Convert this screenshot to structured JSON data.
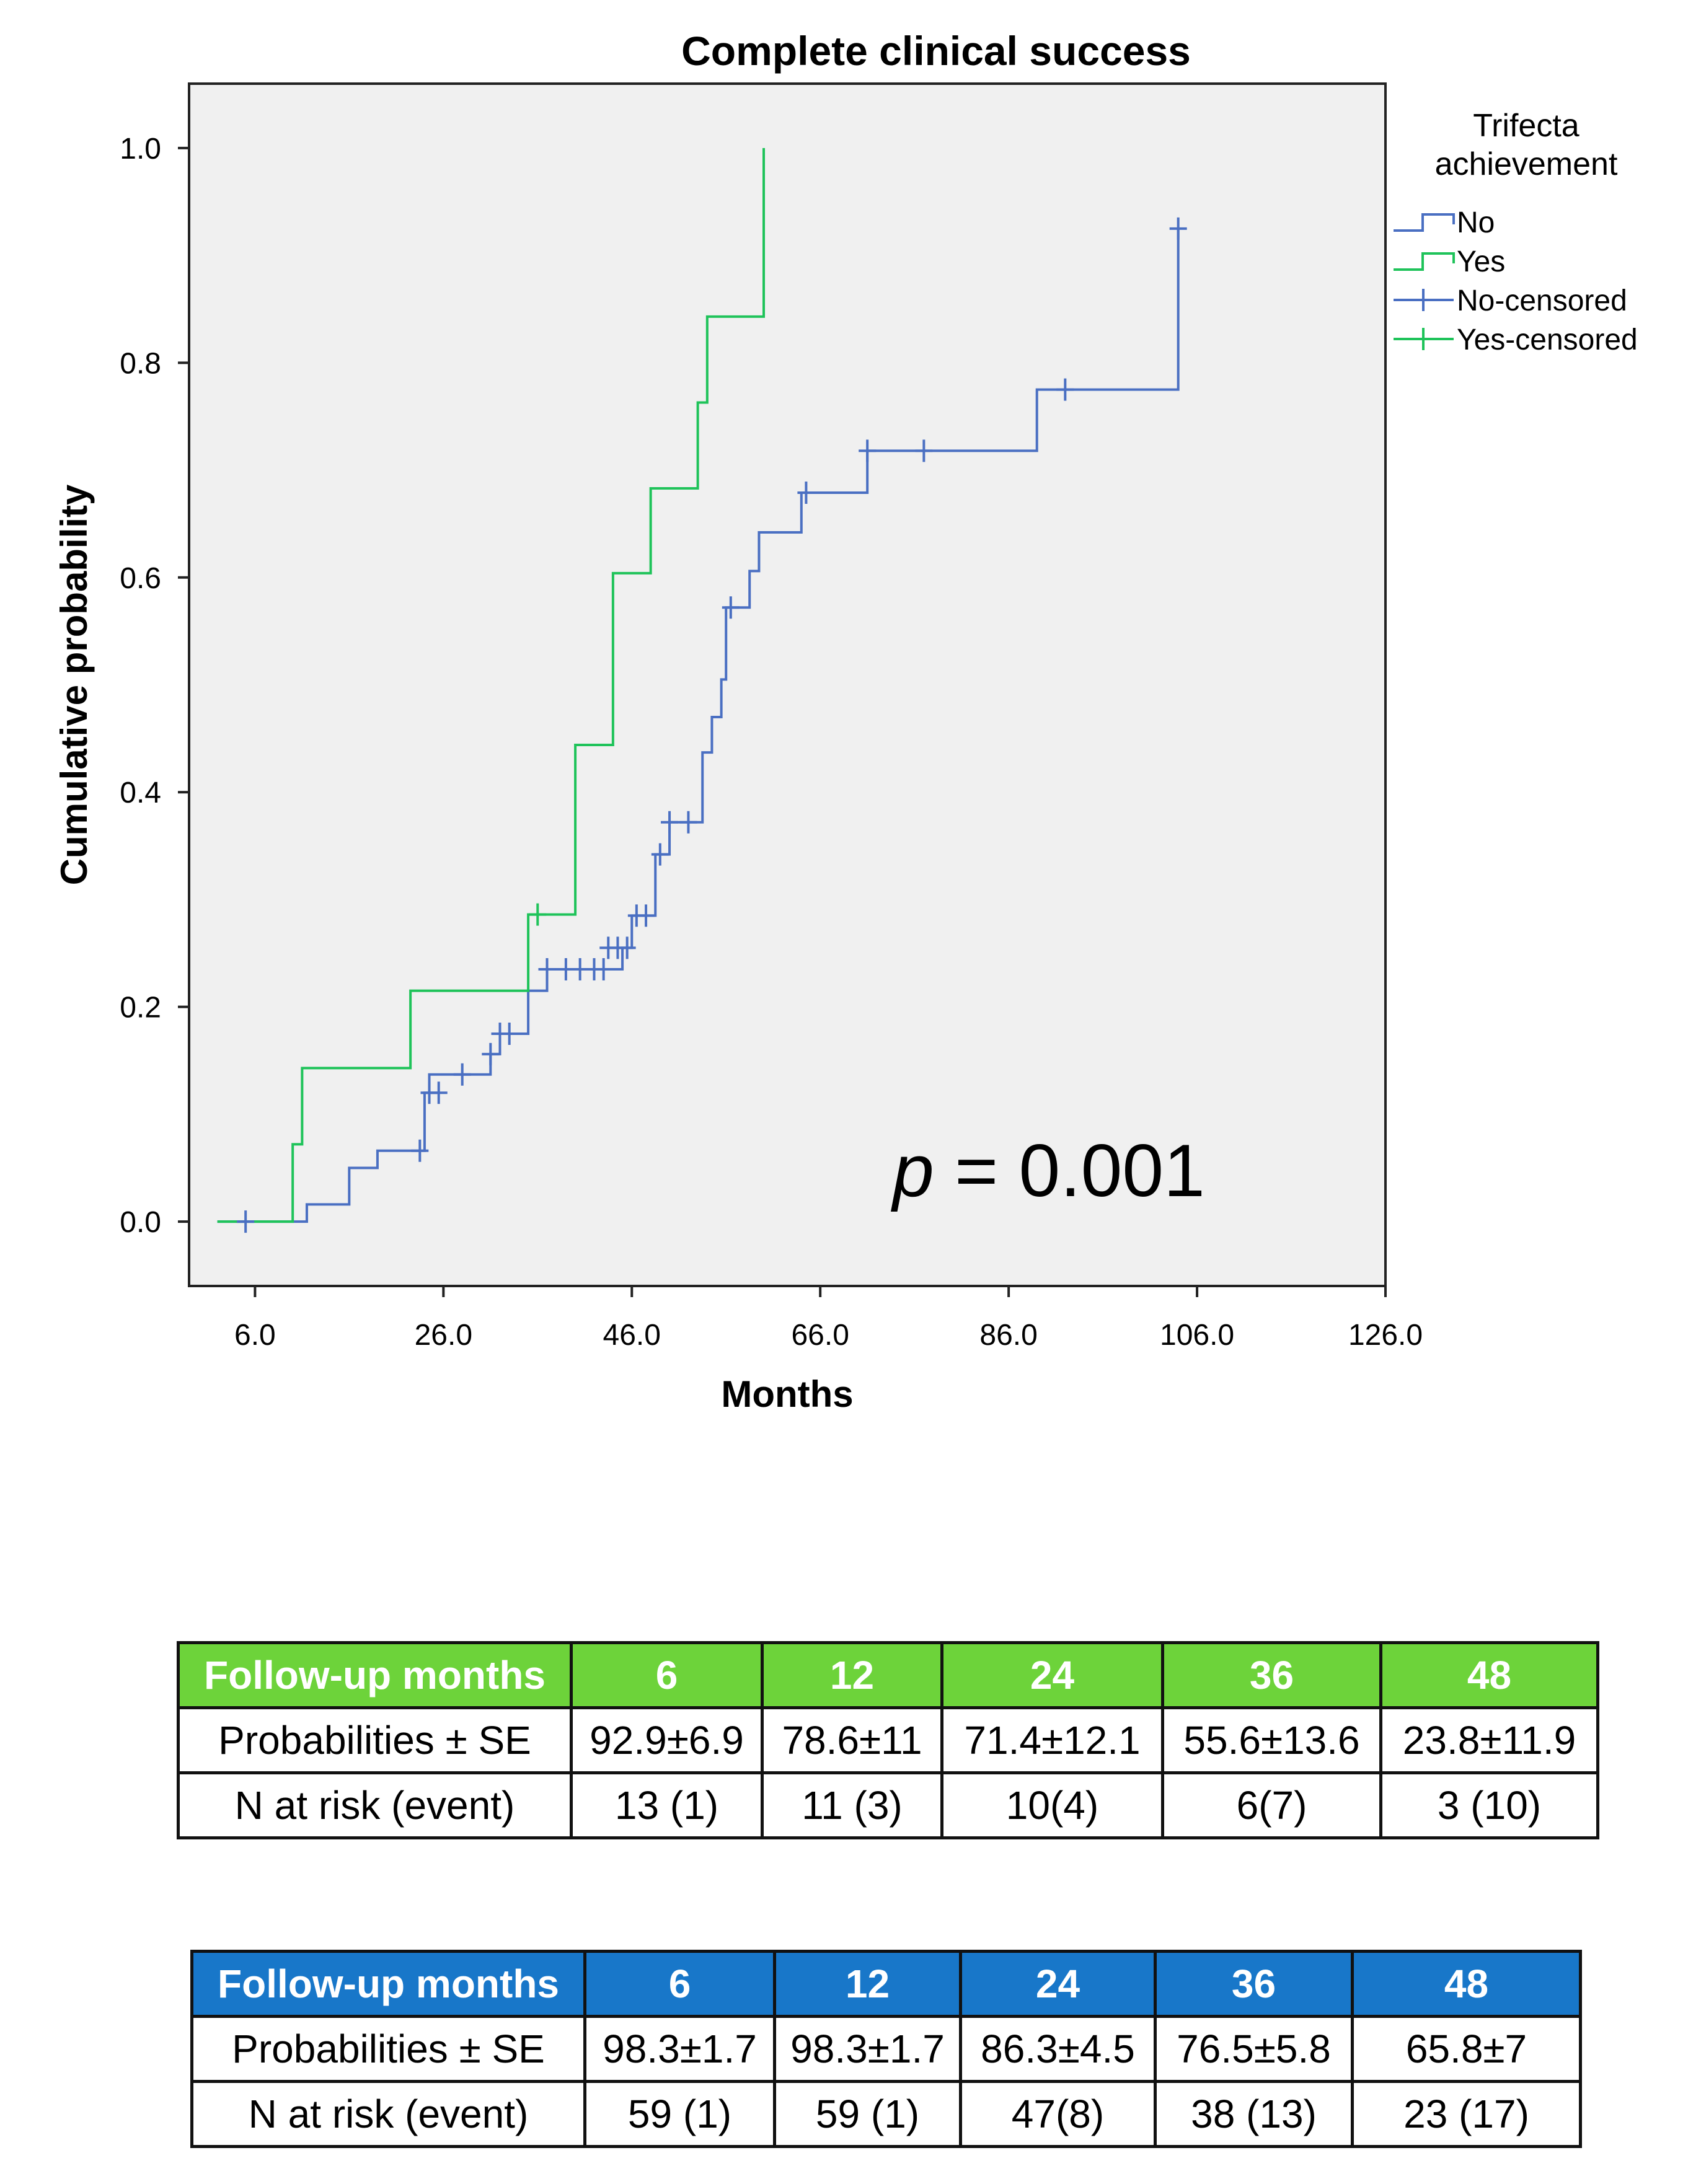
{
  "chart_data": {
    "type": "line",
    "subtype": "kaplan-meier step",
    "title": "Complete clinical success",
    "xlabel": "Months",
    "ylabel": "Cumulative probability",
    "xlim": [
      -1,
      126
    ],
    "ylim": [
      -0.06,
      1.06
    ],
    "xticks": [
      6,
      26,
      46,
      66,
      86,
      106,
      126
    ],
    "xtick_labels": [
      "6.0",
      "26.0",
      "46.0",
      "66.0",
      "86.0",
      "106.0",
      "126.0"
    ],
    "yticks": [
      0,
      0.2,
      0.4,
      0.6,
      0.8,
      1.0
    ],
    "ytick_labels": [
      "0.0",
      "0.2",
      "0.4",
      "0.6",
      "0.8",
      "1.0"
    ],
    "grid": false,
    "legend": {
      "title_line1": "Trifecta",
      "title_line2": "achievement",
      "position": "right",
      "entries": [
        "No",
        "Yes",
        "No-censored",
        "Yes-censored"
      ]
    },
    "annotation": {
      "italic_part": "p",
      "rest": " = 0.001"
    },
    "series": [
      {
        "name": "No",
        "color": "#4a6fc2",
        "steps": [
          [
            2,
            0
          ],
          [
            7,
            0
          ],
          [
            11.5,
            0.016
          ],
          [
            16,
            0.05
          ],
          [
            19,
            0.066
          ],
          [
            24,
            0.12
          ],
          [
            24.5,
            0.137
          ],
          [
            31,
            0.156
          ],
          [
            32,
            0.175
          ],
          [
            35,
            0.215
          ],
          [
            37,
            0.235
          ],
          [
            45,
            0.255
          ],
          [
            46,
            0.285
          ],
          [
            48.5,
            0.342
          ],
          [
            50,
            0.372
          ],
          [
            53.5,
            0.437
          ],
          [
            54.5,
            0.47
          ],
          [
            55.5,
            0.505
          ],
          [
            56,
            0.572
          ],
          [
            58.5,
            0.606
          ],
          [
            59.5,
            0.642
          ],
          [
            64,
            0.679
          ],
          [
            71,
            0.718
          ],
          [
            89,
            0.775
          ],
          [
            104,
            0.925
          ]
        ],
        "censored": [
          [
            5,
            0
          ],
          [
            23.5,
            0.066
          ],
          [
            24.5,
            0.12
          ],
          [
            25.5,
            0.12
          ],
          [
            28,
            0.137
          ],
          [
            31,
            0.156
          ],
          [
            32,
            0.175
          ],
          [
            33,
            0.175
          ],
          [
            37,
            0.235
          ],
          [
            39,
            0.235
          ],
          [
            40.5,
            0.235
          ],
          [
            42,
            0.235
          ],
          [
            43,
            0.235
          ],
          [
            43.5,
            0.255
          ],
          [
            44.5,
            0.255
          ],
          [
            45.5,
            0.255
          ],
          [
            46.5,
            0.285
          ],
          [
            47.5,
            0.285
          ],
          [
            49,
            0.342
          ],
          [
            50,
            0.372
          ],
          [
            52,
            0.372
          ],
          [
            56.5,
            0.572
          ],
          [
            64.5,
            0.679
          ],
          [
            71,
            0.718
          ],
          [
            77,
            0.718
          ],
          [
            92,
            0.775
          ],
          [
            104,
            0.925
          ]
        ]
      },
      {
        "name": "Yes",
        "color": "#1fc35a",
        "steps": [
          [
            2,
            0
          ],
          [
            6,
            0
          ],
          [
            10,
            0.072
          ],
          [
            11,
            0.143
          ],
          [
            22.5,
            0.215
          ],
          [
            35,
            0.286
          ],
          [
            40,
            0.444
          ],
          [
            44,
            0.604
          ],
          [
            48,
            0.683
          ],
          [
            53,
            0.763
          ],
          [
            54,
            0.843
          ],
          [
            60,
            0.921
          ],
          [
            60,
            1.0
          ]
        ],
        "censored": [
          [
            36,
            0.286
          ]
        ]
      }
    ]
  },
  "tables": [
    {
      "header": [
        "Follow-up months",
        "6",
        "12",
        "24",
        "36",
        "48"
      ],
      "rows": [
        [
          "Probabilities ± SE",
          "92.9±6.9",
          "78.6±11",
          "71.4±12.1",
          "55.6±13.6",
          "23.8±11.9"
        ],
        [
          "N at risk (event)",
          "13 (1)",
          "11 (3)",
          "10(4)",
          "6(7)",
          "3 (10)"
        ]
      ]
    },
    {
      "header": [
        "Follow-up months",
        "6",
        "12",
        "24",
        "36",
        "48"
      ],
      "rows": [
        [
          "Probabilities ± SE",
          "98.3±1.7",
          "98.3±1.7",
          "86.3±4.5",
          "76.5±5.8",
          "65.8±7"
        ],
        [
          "N at risk (event)",
          "59 (1)",
          "59 (1)",
          "47(8)",
          "38 (13)",
          "23 (17)"
        ]
      ]
    }
  ]
}
